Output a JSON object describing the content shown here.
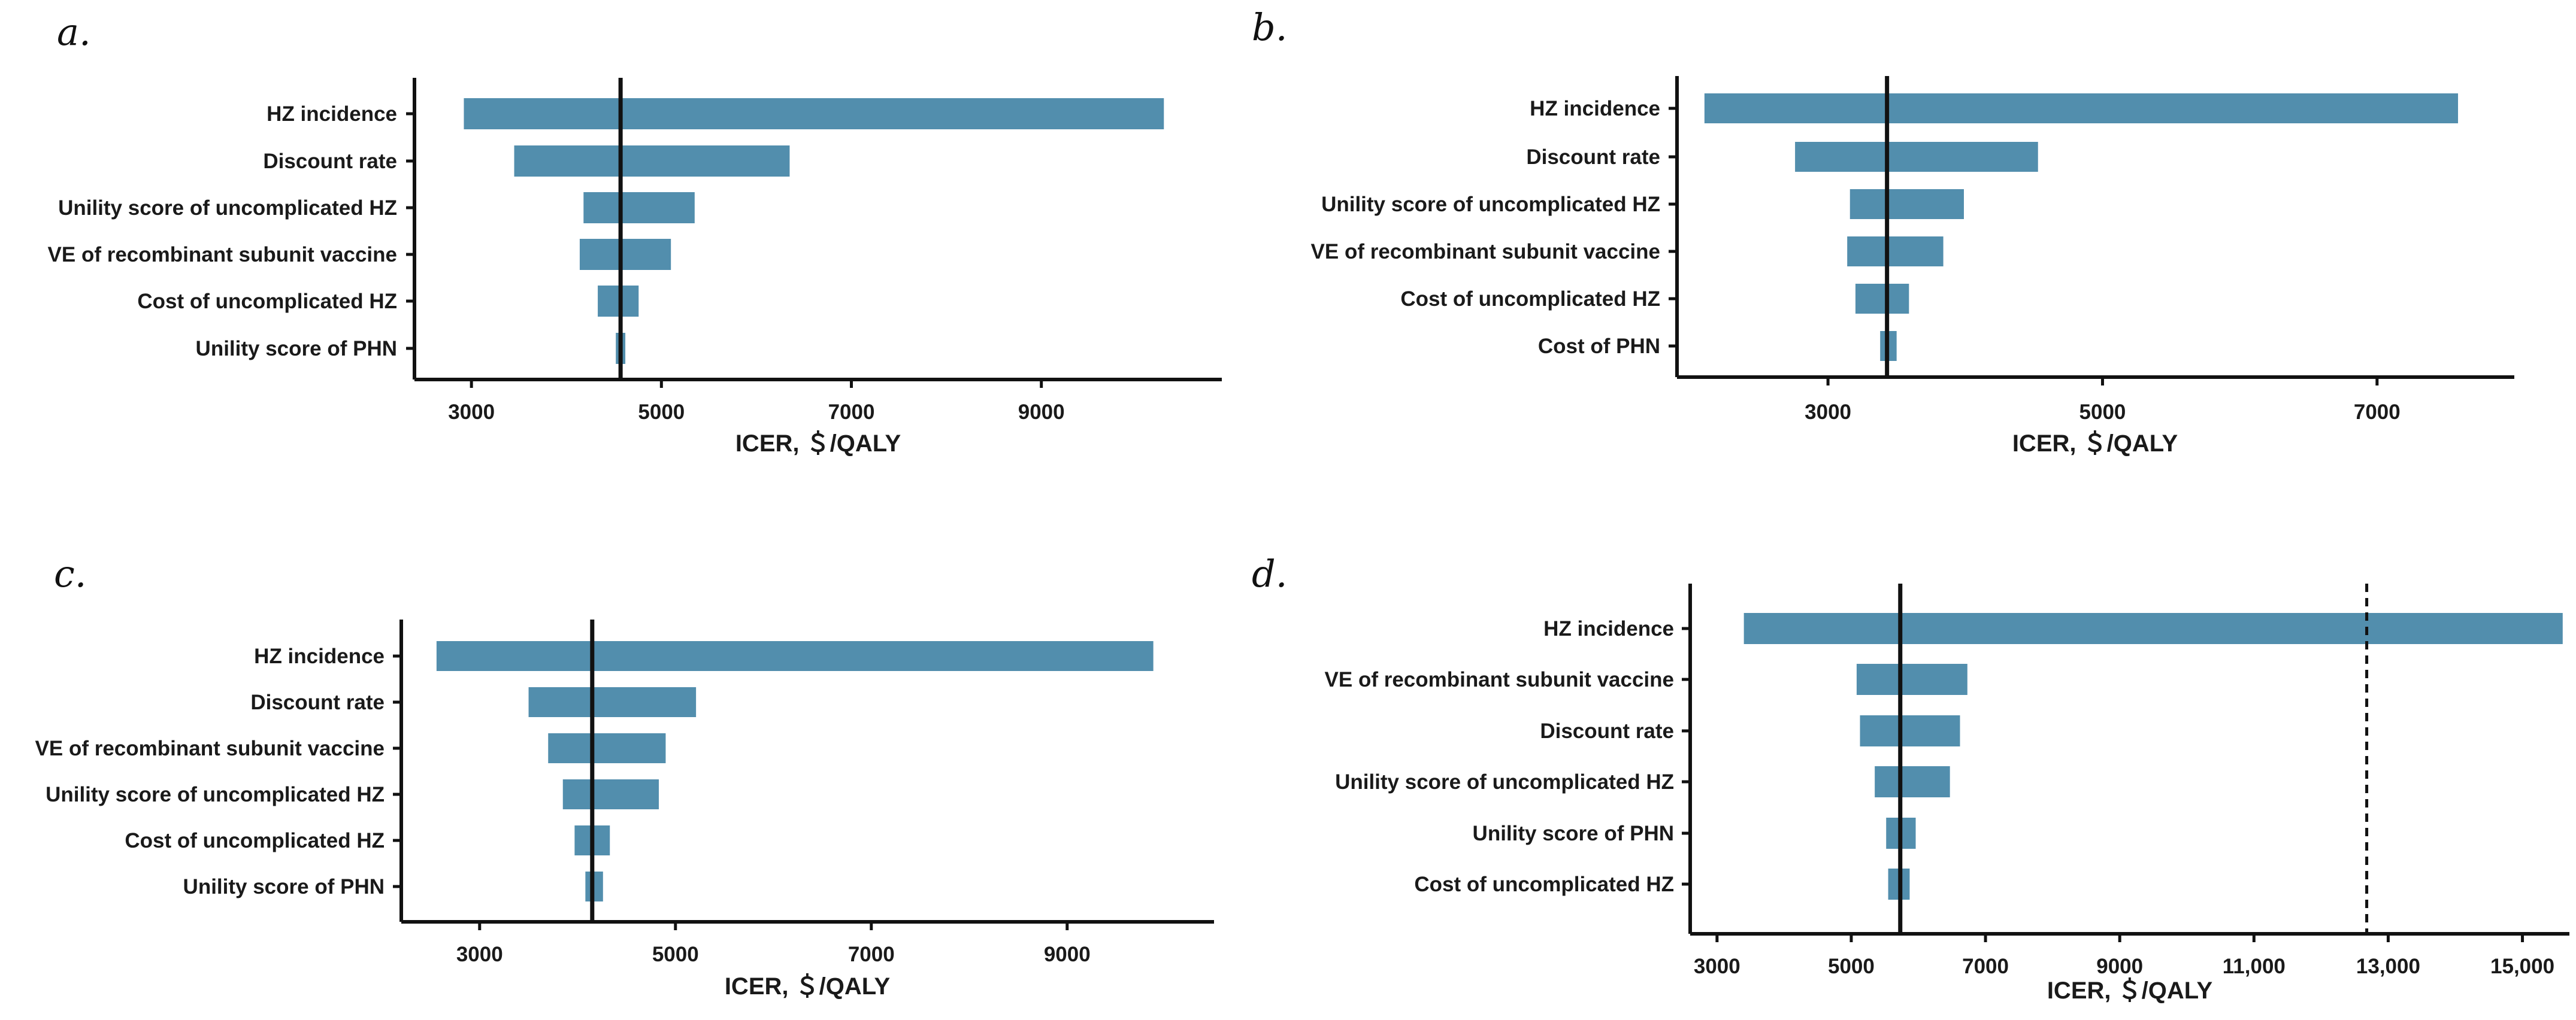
{
  "chart_data": [
    {
      "type": "bar",
      "subtype": "tornado",
      "panel_label": "a.",
      "xlabel": "ICER, ＄/QALY",
      "xlim": [
        2400,
        10900
      ],
      "xticks": [
        3000,
        5000,
        7000,
        9000
      ],
      "xtick_labels": [
        "3000",
        "5000",
        "7000",
        "9000"
      ],
      "baseline": 4570,
      "threshold": null,
      "categories": [
        "HZ incidence",
        "Discount rate",
        "Unility score of uncomplicated HZ",
        "VE of recombinant subunit vaccine",
        "Cost of uncomplicated HZ",
        "Unility score of PHN"
      ],
      "series": [
        {
          "name": "low",
          "values": [
            2920,
            3450,
            4180,
            4140,
            4330,
            4520
          ]
        },
        {
          "name": "high",
          "values": [
            10290,
            6350,
            5350,
            5100,
            4760,
            4620
          ]
        }
      ]
    },
    {
      "type": "bar",
      "subtype": "tornado",
      "panel_label": "b.",
      "xlabel": "ICER, ＄/QALY",
      "xlim": [
        1900,
        8000
      ],
      "xticks": [
        3000,
        5000,
        7000
      ],
      "xtick_labels": [
        "3000",
        "5000",
        "7000"
      ],
      "baseline": 3430,
      "threshold": null,
      "categories": [
        "HZ incidence",
        "Discount rate",
        "Unility score of uncomplicated HZ",
        "VE of recombinant subunit vaccine",
        "Cost of uncomplicated HZ",
        "Cost of PHN"
      ],
      "series": [
        {
          "name": "low",
          "values": [
            2100,
            2760,
            3160,
            3140,
            3200,
            3380
          ]
        },
        {
          "name": "high",
          "values": [
            7590,
            4530,
            3990,
            3840,
            3590,
            3500
          ]
        }
      ]
    },
    {
      "type": "bar",
      "subtype": "tornado",
      "panel_label": "c.",
      "xlabel": "ICER, ＄/QALY",
      "xlim": [
        2200,
        10500
      ],
      "xticks": [
        3000,
        5000,
        7000,
        9000
      ],
      "xtick_labels": [
        "3000",
        "5000",
        "7000",
        "9000"
      ],
      "baseline": 4150,
      "threshold": null,
      "categories": [
        "HZ incidence",
        "Discount rate",
        "VE of recombinant subunit vaccine",
        "Unility score of uncomplicated HZ",
        "Cost of uncomplicated HZ",
        "Unility score of PHN"
      ],
      "series": [
        {
          "name": "low",
          "values": [
            2560,
            3500,
            3700,
            3850,
            3970,
            4080
          ]
        },
        {
          "name": "high",
          "values": [
            9880,
            5210,
            4900,
            4830,
            4330,
            4260
          ]
        }
      ]
    },
    {
      "type": "bar",
      "subtype": "tornado",
      "panel_label": "d.",
      "xlabel": "ICER, ＄/QALY",
      "xlim": [
        2600,
        15700
      ],
      "xticks": [
        3000,
        5000,
        7000,
        9000,
        11000,
        13000,
        15000
      ],
      "xtick_labels": [
        "3000",
        "5000",
        "7000",
        "9000",
        "11,000",
        "13,000",
        "15,000"
      ],
      "baseline": 5730,
      "threshold": 12680,
      "categories": [
        "HZ incidence",
        "VE of recombinant subunit vaccine",
        "Discount rate",
        "Unility score of uncomplicated HZ",
        "Unility score of PHN",
        "Cost of uncomplicated HZ"
      ],
      "series": [
        {
          "name": "low",
          "values": [
            3400,
            5080,
            5130,
            5350,
            5520,
            5550
          ]
        },
        {
          "name": "high",
          "values": [
            15600,
            6730,
            6620,
            6470,
            5960,
            5870
          ]
        }
      ]
    }
  ],
  "colors": {
    "bar": "#528ead",
    "axis": "#111111"
  }
}
